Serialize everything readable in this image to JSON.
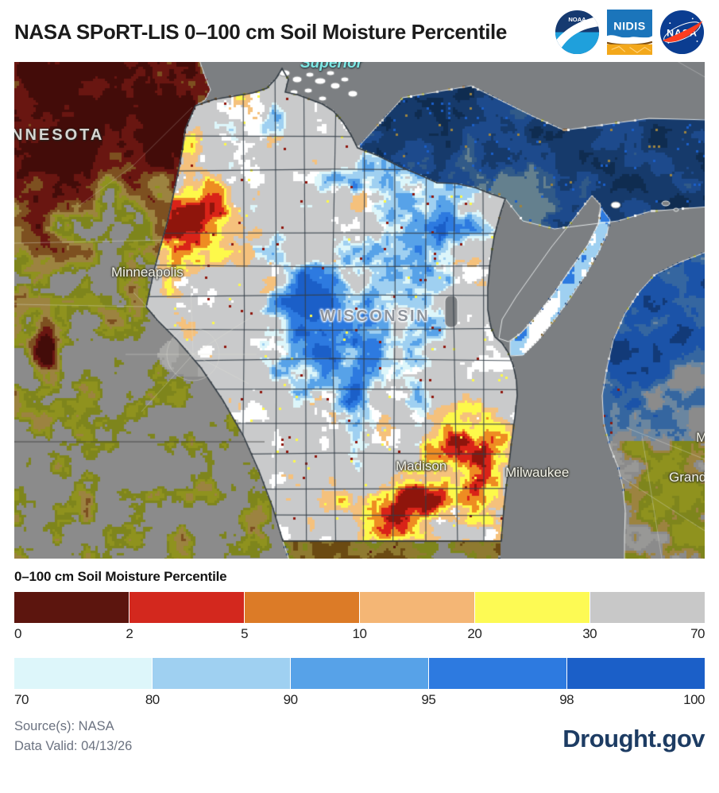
{
  "header": {
    "title": "NASA SPoRT-LIS 0–100 cm Soil Moisture Percentile",
    "logos": [
      {
        "name": "noaa-logo",
        "text": "NOAA"
      },
      {
        "name": "nidis-logo",
        "text": "NIDIS"
      },
      {
        "name": "nasa-logo",
        "text": "NASA"
      }
    ]
  },
  "map": {
    "labels": {
      "lake_superior": "Superior",
      "minnesota": "NNESOTA",
      "minneapolis": "Minneapolis",
      "wisconsin": "WISCONSIN",
      "madison": "Madison",
      "milwaukee": "Milwaukee",
      "grand": "Grand",
      "michigan_partial": "M"
    }
  },
  "legend": {
    "title": "0–100 cm Soil Moisture Percentile",
    "bars": [
      {
        "name": "dry-percentiles",
        "ticks": [
          "0",
          "2",
          "5",
          "10",
          "20",
          "30",
          "70"
        ],
        "colors": [
          "#5c150e",
          "#d3281e",
          "#dc7b27",
          "#f4b675",
          "#fdfa54",
          "#c8c8c8"
        ]
      },
      {
        "name": "wet-percentiles",
        "ticks": [
          "70",
          "80",
          "90",
          "95",
          "98",
          "100"
        ],
        "colors": [
          "#ddf6fa",
          "#9fd0f1",
          "#57a2e8",
          "#2d7ae0",
          "#1b5fc8"
        ]
      }
    ]
  },
  "footer": {
    "source": "Source(s): NASA",
    "data_valid": "Data Valid: 04/13/26",
    "brand": "Drought.gov"
  }
}
